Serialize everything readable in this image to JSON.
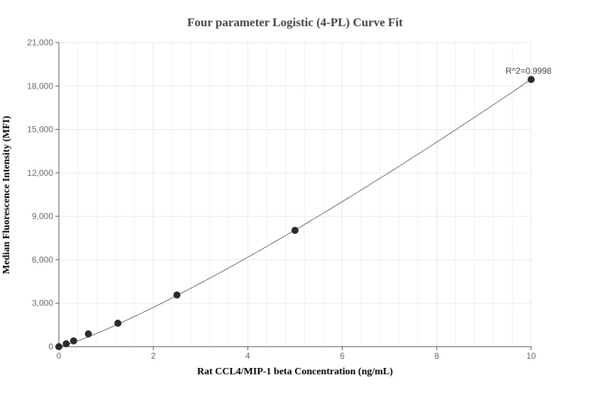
{
  "chart_data": {
    "type": "scatter",
    "title": "Four parameter Logistic (4-PL) Curve Fit",
    "xlabel": "Rat CCL4/MIP-1 beta Concentration (ng/mL)",
    "ylabel": "Median Fluorescence Intensity (MFI)",
    "xlim": [
      0,
      10
    ],
    "ylim": [
      0,
      21000
    ],
    "x_ticks": [
      "0",
      "2",
      "4",
      "6",
      "8",
      "10"
    ],
    "y_ticks": [
      "0",
      "3,000",
      "6,000",
      "9,000",
      "12,000",
      "15,000",
      "18,000",
      "21,000"
    ],
    "grid": true,
    "series": [
      {
        "x": [
          0,
          0.156,
          0.3125,
          0.625,
          1.25,
          2.5,
          5,
          10
        ],
        "y": [
          0,
          200,
          400,
          880,
          1620,
          3570,
          8030,
          18450
        ]
      }
    ],
    "fit_curve": "4-PL",
    "annotation": "R^2=0.9998",
    "colors": {
      "points": "#2b2b2b",
      "curve": "#444444",
      "grid": "#e6e8f2"
    }
  }
}
